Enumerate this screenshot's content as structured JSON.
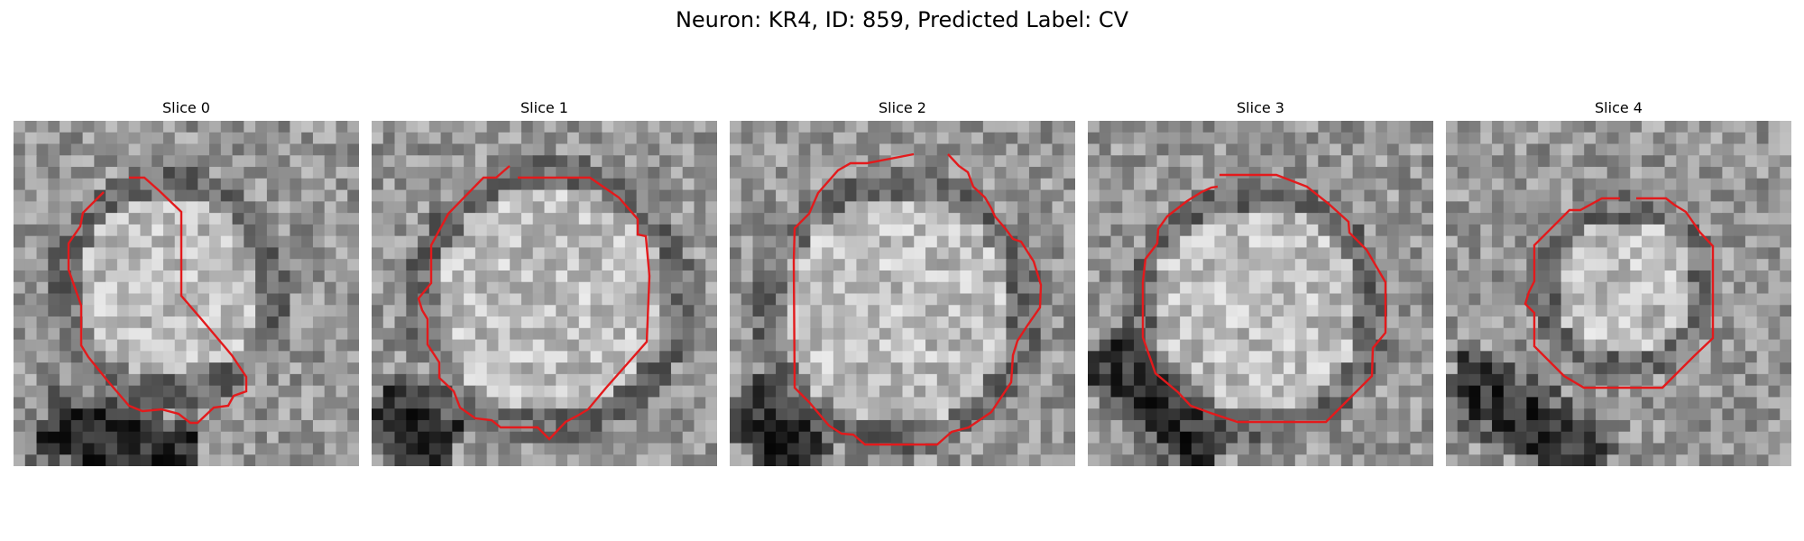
{
  "figure": {
    "title": "Neuron: KR4, ID: 859, Predicted Label: CV"
  },
  "panels": [
    {
      "title": "Slice 0"
    },
    {
      "title": "Slice 1"
    },
    {
      "title": "Slice 2"
    },
    {
      "title": "Slice 3"
    },
    {
      "title": "Slice 4"
    }
  ],
  "colors": {
    "contour": "#e31a1c",
    "background": "#ffffff"
  }
}
